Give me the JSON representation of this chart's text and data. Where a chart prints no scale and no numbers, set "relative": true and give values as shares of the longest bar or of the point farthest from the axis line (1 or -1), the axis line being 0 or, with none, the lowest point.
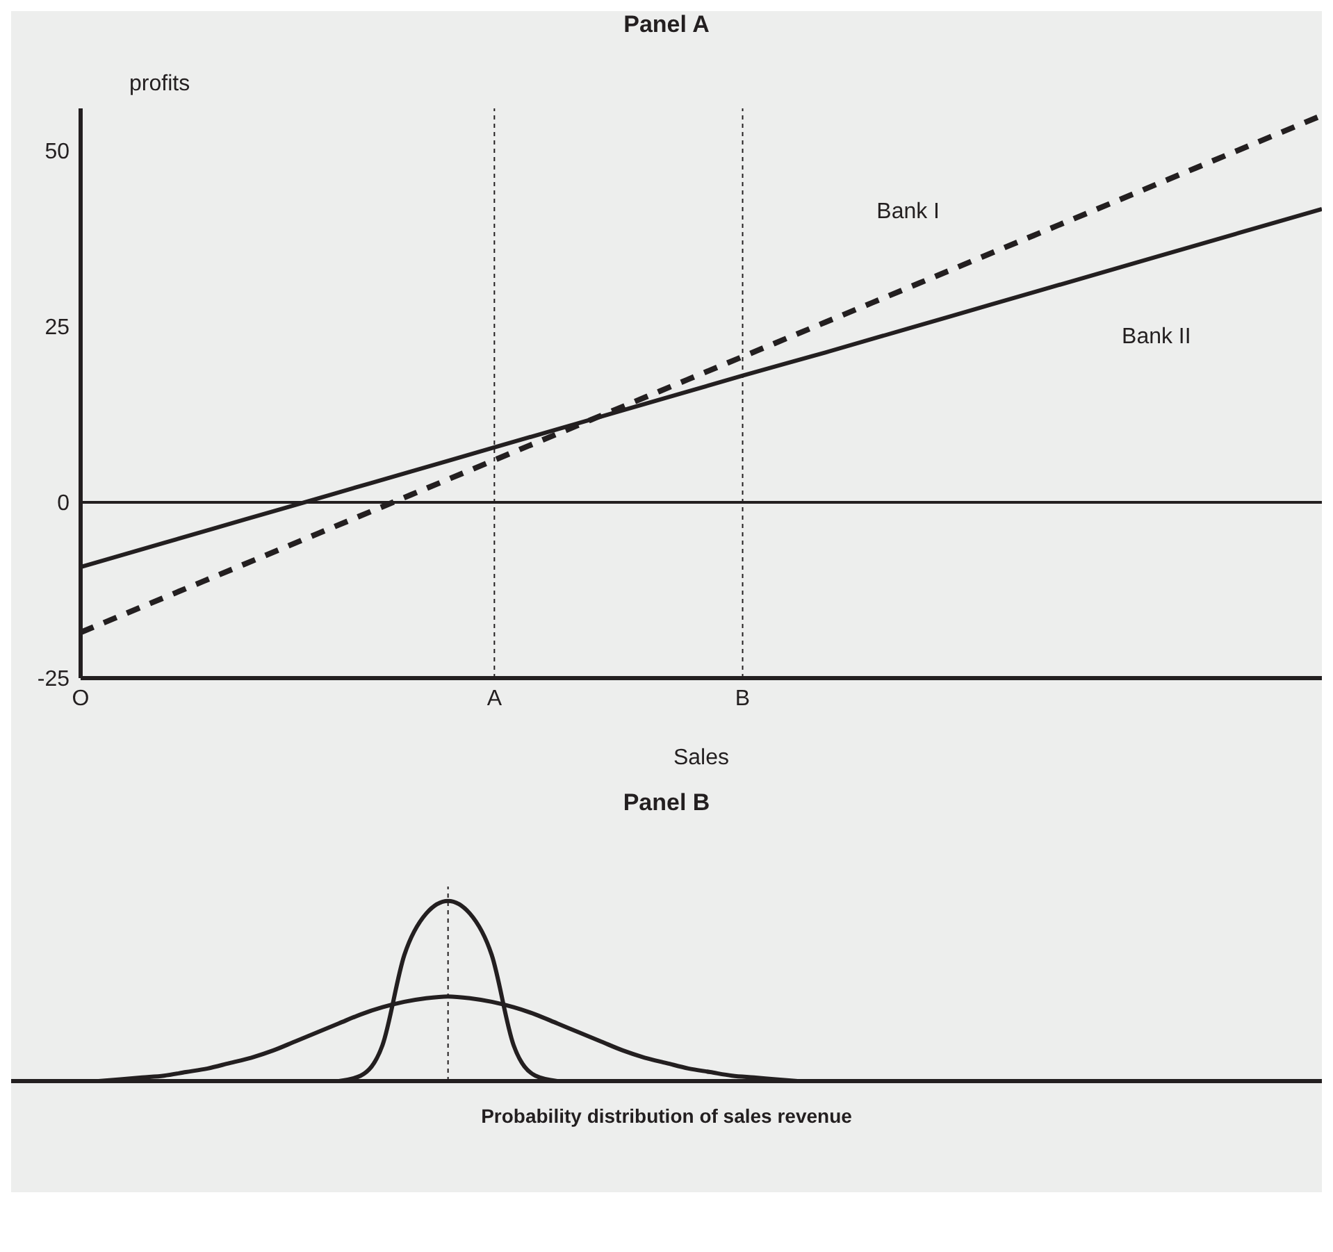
{
  "chart_data": [
    {
      "type": "line",
      "title": "Panel A",
      "xlabel": "Sales",
      "ylabel": "profits",
      "categories": [
        "O",
        null,
        null,
        null,
        null,
        "A",
        null,
        null,
        "B",
        null,
        null,
        null,
        null,
        null,
        null,
        null
      ],
      "ylim": [
        -25,
        56
      ],
      "yticks": [
        -25,
        0,
        25,
        50
      ],
      "series": [
        {
          "name": "Bank I",
          "color": "#231f20",
          "line_style": "dashed",
          "values": [
            -18.5,
            -13.6,
            -8.7,
            -3.8,
            1.1,
            6,
            10.9,
            15.8,
            20.7,
            25.6,
            30.5,
            35.4,
            40.3,
            45.2,
            50.1,
            55
          ]
        },
        {
          "name": "Bank II",
          "color": "#231f20",
          "line_style": "solid",
          "values": [
            -9.2,
            -5.8,
            -2.4,
            1,
            4.4,
            7.8,
            11.2,
            14.6,
            18,
            21.3,
            24.7,
            28.1,
            31.5,
            34.9,
            38.3,
            41.7
          ]
        }
      ],
      "ref_lines": [
        {
          "axis": "y",
          "value": 0,
          "color": "#231f20",
          "line_style": "solid"
        },
        {
          "axis": "x",
          "value": "A",
          "color": "#231f20",
          "line_style": "dashed"
        },
        {
          "axis": "x",
          "value": "B",
          "color": "#231f20",
          "line_style": "dashed"
        }
      ]
    },
    {
      "type": "line",
      "title": "Panel B",
      "xlabel": "Probability distribution of sales revenue",
      "relative": true,
      "categories": [
        null,
        null,
        null,
        null,
        null,
        null,
        null,
        null,
        null,
        null,
        null,
        null,
        null,
        null,
        null,
        null,
        null,
        null,
        null,
        null,
        null,
        null,
        null,
        null,
        null,
        null,
        null,
        null,
        null,
        null,
        null,
        null,
        null,
        null,
        null,
        null,
        null,
        null,
        null,
        null,
        null,
        null,
        null,
        null,
        null,
        null,
        null,
        null,
        null,
        null,
        null,
        null,
        null,
        null,
        null,
        null,
        null,
        null,
        null,
        null,
        null
      ],
      "series": [
        {
          "color": "#231f20",
          "values": [
            null,
            null,
            null,
            null,
            null,
            null,
            null,
            null,
            null,
            null,
            null,
            null,
            null,
            null,
            null,
            0,
            0.03,
            0.2,
            0.7,
            0.93,
            1,
            0.93,
            0.7,
            0.2,
            0.03,
            0,
            null,
            null,
            null,
            null,
            null,
            null,
            null,
            null,
            null,
            null,
            null,
            null,
            null,
            null,
            null,
            null,
            null,
            null,
            null,
            null,
            null,
            null,
            null,
            null,
            null,
            null,
            null,
            null,
            null,
            null,
            null,
            null,
            null,
            null,
            null
          ]
        },
        {
          "color": "#231f20",
          "values": [
            null,
            null,
            null,
            null,
            0,
            0.01,
            0.02,
            0.03,
            0.05,
            0.07,
            0.1,
            0.13,
            0.17,
            0.22,
            0.27,
            0.32,
            0.37,
            0.41,
            0.44,
            0.46,
            0.47,
            0.46,
            0.44,
            0.41,
            0.37,
            0.32,
            0.27,
            0.22,
            0.17,
            0.13,
            0.1,
            0.07,
            0.05,
            0.03,
            0.02,
            0.01,
            0,
            null,
            null,
            null,
            null,
            null,
            null,
            null,
            null,
            null,
            null,
            null,
            null,
            null,
            null,
            null,
            null,
            null,
            null,
            null,
            null,
            null,
            null,
            null,
            null
          ]
        }
      ]
    }
  ]
}
